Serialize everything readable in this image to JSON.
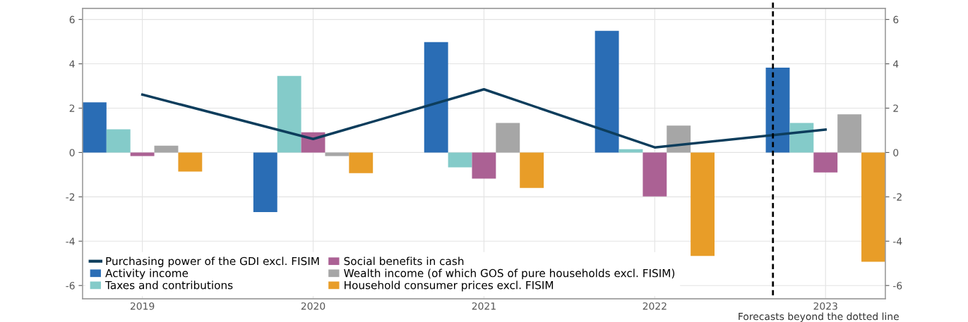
{
  "chart_data": {
    "type": "bar",
    "categories": [
      "2019",
      "2020",
      "2021",
      "2022",
      "2023"
    ],
    "series": [
      {
        "name": "Purchasing power of the GDI excl. FISIM",
        "type": "line",
        "color": "#0d3d5c",
        "values": [
          2.61,
          0.61,
          2.85,
          0.23,
          1.03
        ]
      },
      {
        "name": "Activity income",
        "color": "#2a6db5",
        "values": [
          2.26,
          -2.69,
          4.98,
          5.49,
          3.83
        ]
      },
      {
        "name": "Taxes and contributions",
        "color": "#84cbc9",
        "values": [
          1.05,
          3.45,
          -0.67,
          0.15,
          1.33
        ]
      },
      {
        "name": "Social benefits in cash",
        "color": "#ab6194",
        "values": [
          -0.16,
          0.91,
          -1.18,
          -1.98,
          -0.9
        ]
      },
      {
        "name": "Wealth income (of which GOS of pure households excl. FISIM)",
        "color": "#a6a6a6",
        "values": [
          0.31,
          -0.16,
          1.33,
          1.21,
          1.72
        ]
      },
      {
        "name": "Household consumer prices excl. FISIM",
        "color": "#e89d28",
        "values": [
          -0.86,
          -0.93,
          -1.6,
          -4.67,
          -4.93
        ]
      }
    ],
    "ylim": [
      -6.6,
      6.5
    ],
    "yticks": [
      -6,
      -4,
      -2,
      0,
      2,
      4,
      6
    ],
    "y2lim": [
      -6.6,
      6.5
    ],
    "y2ticks": [
      -6,
      -4,
      -2,
      0,
      2,
      4,
      6
    ],
    "annotations": [
      "Forecasts beyond the dotted line"
    ],
    "grid": true,
    "legend": "bottom left"
  }
}
